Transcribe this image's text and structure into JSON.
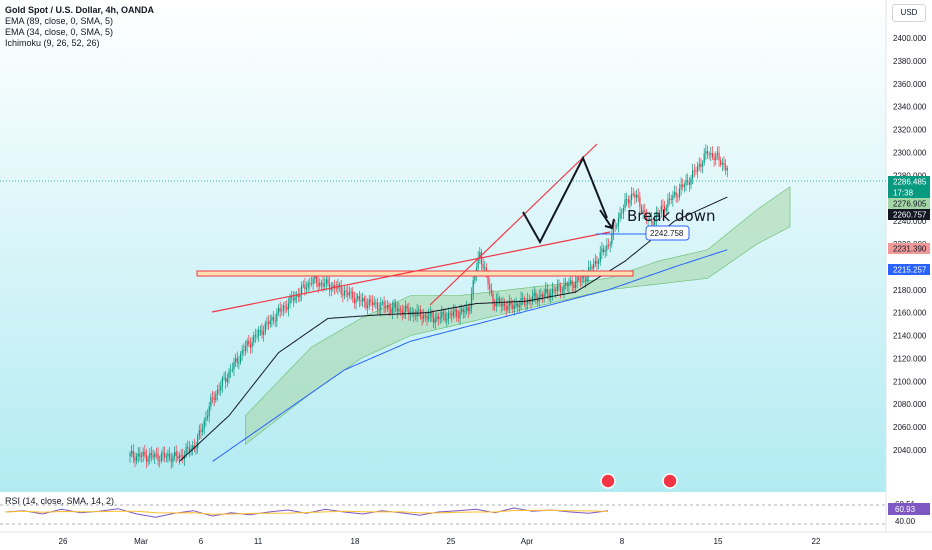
{
  "header": {
    "symbol": "Gold Spot / U.S. Dollar, 4h, OANDA",
    "indicators": [
      "EMA (89, close, 0, SMA, 5)",
      "EMA (34, close, 0, SMA, 5)",
      "Ichimoku (9, 26, 52, 26)"
    ],
    "currency": "USD"
  },
  "rsi": {
    "label": "RSI (14, close, SMA, 14, 2)",
    "value": "60.93",
    "levels": [
      "68.51",
      "40.00"
    ]
  },
  "annotations": {
    "break_down": "Break down",
    "target": "2242.758"
  },
  "price_labels": {
    "last": "2286.485",
    "countdown": "17:38",
    "a": "2276.905",
    "b": "2260.757",
    "c": "2231.390",
    "d": "2215.257"
  },
  "colors": {
    "bull": "#089981",
    "bear": "#f23645",
    "ema89": "#2962ff",
    "ema34": "#131722",
    "cloud": "#a5d6a7",
    "trend": "#f23645",
    "bg_top": "#ffffff",
    "bg_bottom": "#b2ebf2"
  },
  "chart_data": {
    "type": "candlestick",
    "y_ticks": [
      "2400.000",
      "2380.000",
      "2360.000",
      "2340.000",
      "2320.000",
      "2300.000",
      "2280.000",
      "2260.000",
      "2240.000",
      "2220.000",
      "2200.000",
      "2180.000",
      "2160.000",
      "2140.000",
      "2120.000",
      "2100.000",
      "2080.000",
      "2060.000",
      "2040.000"
    ],
    "x_ticks": [
      "26",
      "Mar",
      "6",
      "11",
      "18",
      "25",
      "Apr",
      "8",
      "15",
      "22"
    ],
    "ylim": [
      2030,
      2410
    ],
    "anchors_close": [
      [
        0,
        2035
      ],
      [
        30,
        2034
      ],
      [
        40,
        2045
      ],
      [
        50,
        2085
      ],
      [
        70,
        2130
      ],
      [
        90,
        2160
      ],
      [
        110,
        2188
      ],
      [
        125,
        2182
      ],
      [
        140,
        2170
      ],
      [
        165,
        2162
      ],
      [
        185,
        2155
      ],
      [
        205,
        2162
      ],
      [
        210,
        2200
      ],
      [
        212,
        2212
      ],
      [
        220,
        2170
      ],
      [
        230,
        2165
      ],
      [
        255,
        2178
      ],
      [
        275,
        2190
      ],
      [
        290,
        2220
      ],
      [
        298,
        2250
      ],
      [
        305,
        2265
      ],
      [
        315,
        2238
      ],
      [
        325,
        2255
      ],
      [
        340,
        2278
      ],
      [
        350,
        2300
      ],
      [
        356,
        2295
      ],
      [
        362,
        2286
      ]
    ],
    "ema34_anchors": [
      [
        30,
        2030
      ],
      [
        60,
        2070
      ],
      [
        90,
        2125
      ],
      [
        120,
        2155
      ],
      [
        150,
        2158
      ],
      [
        180,
        2160
      ],
      [
        210,
        2168
      ],
      [
        240,
        2170
      ],
      [
        270,
        2178
      ],
      [
        300,
        2205
      ],
      [
        330,
        2240
      ],
      [
        362,
        2261
      ]
    ],
    "ema89_anchors": [
      [
        50,
        2030
      ],
      [
        90,
        2070
      ],
      [
        130,
        2110
      ],
      [
        170,
        2135
      ],
      [
        210,
        2150
      ],
      [
        250,
        2165
      ],
      [
        290,
        2180
      ],
      [
        330,
        2200
      ],
      [
        362,
        2215
      ]
    ],
    "cloud_anchors": [
      [
        70,
        2045,
        2070
      ],
      [
        110,
        2090,
        2130
      ],
      [
        140,
        2120,
        2155
      ],
      [
        170,
        2140,
        2175
      ],
      [
        200,
        2150,
        2175
      ],
      [
        230,
        2160,
        2180
      ],
      [
        260,
        2170,
        2185
      ],
      [
        290,
        2180,
        2190
      ],
      [
        320,
        2185,
        2205
      ],
      [
        350,
        2190,
        2215
      ],
      [
        380,
        2220,
        2250
      ],
      [
        400,
        2235,
        2270
      ]
    ],
    "rsi_series": [
      58,
      60,
      55,
      62,
      57,
      59,
      63,
      55,
      50,
      56,
      60,
      52,
      57,
      54,
      58,
      61,
      56,
      62,
      58,
      55,
      60,
      57,
      53,
      58,
      60,
      62,
      57,
      64,
      59,
      61,
      58,
      56,
      60
    ]
  }
}
